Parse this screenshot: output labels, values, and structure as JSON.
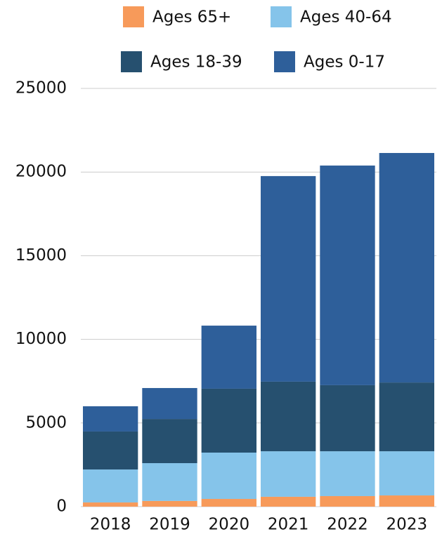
{
  "chart_data": {
    "type": "stacked_bar",
    "categories": [
      "2018",
      "2019",
      "2020",
      "2021",
      "2022",
      "2023"
    ],
    "series": [
      {
        "name": "Ages 65+",
        "color": "#f79a5a",
        "values": [
          250,
          340,
          460,
          590,
          630,
          670
        ]
      },
      {
        "name": "Ages 40-64",
        "color": "#85c4ea",
        "values": [
          1970,
          2260,
          2770,
          2720,
          2680,
          2640
        ]
      },
      {
        "name": "Ages 18-39",
        "color": "#26506f",
        "values": [
          2270,
          2640,
          3820,
          4160,
          3950,
          4110
        ]
      },
      {
        "name": "Ages 0-17",
        "color": "#2e5f9a",
        "values": [
          1510,
          1850,
          3770,
          12290,
          13130,
          13720
        ]
      }
    ],
    "ylim": [
      0,
      25000
    ],
    "yticks": [
      0,
      5000,
      10000,
      15000,
      20000,
      25000
    ],
    "grid": true
  }
}
